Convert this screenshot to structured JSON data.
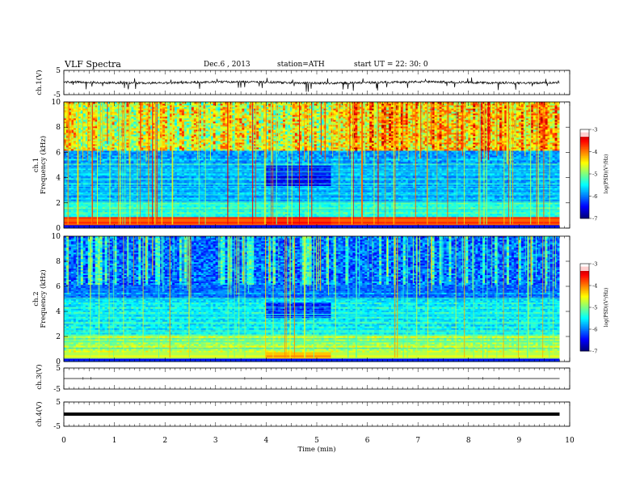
{
  "header": {
    "title": "VLF  Spectra",
    "date": "Dec.6  , 2013",
    "station": "station=ATH",
    "start": "start  UT  =   22: 30: 0"
  },
  "chart_data": [
    {
      "type": "line",
      "panel": "ch1-waveform",
      "ylabel": "ch.1(V)",
      "ylim": [
        -5,
        5
      ],
      "yticks": [
        "5",
        "-5"
      ],
      "xlim": [
        0,
        10
      ],
      "baseline": 0,
      "description_trace": "noisy waveform around 0 V with sporadic downward spikes"
    },
    {
      "type": "heatmap",
      "panel": "ch1-spectrogram",
      "ylabel": "ch.1\nFrequency  (kHz)",
      "ylim": [
        0,
        10
      ],
      "yticks": [
        "0",
        "2",
        "4",
        "6",
        "8",
        "10"
      ],
      "xlim": [
        0,
        10
      ],
      "data_end_min": 9.8,
      "colorbar": {
        "label": "log(PSD)(V²/Hz)",
        "range": [
          -7,
          -3
        ],
        "ticks": [
          "-3",
          "-4",
          "-5",
          "-6",
          "-7"
        ]
      }
    },
    {
      "type": "heatmap",
      "panel": "ch2-spectrogram",
      "ylabel": "ch.2\nFrequency  (kHz)",
      "ylim": [
        0,
        10
      ],
      "yticks": [
        "0",
        "2",
        "4",
        "6",
        "8",
        "10"
      ],
      "xlim": [
        0,
        10
      ],
      "data_end_min": 9.8,
      "colorbar": {
        "label": "log(PSD)(V²/Hz)",
        "range": [
          -7,
          -3
        ],
        "ticks": [
          "-3",
          "-4",
          "-5",
          "-6",
          "-7"
        ]
      }
    },
    {
      "type": "line",
      "panel": "ch3-waveform",
      "ylabel": "ch.3(V)",
      "ylim": [
        -5,
        5
      ],
      "yticks": [
        "5",
        "-5"
      ],
      "xlim": [
        0,
        10
      ],
      "baseline": 0
    },
    {
      "type": "line",
      "panel": "ch4-waveform",
      "ylabel": "ch.4(V)",
      "ylim": [
        -5,
        5
      ],
      "yticks": [
        "5",
        "-5"
      ],
      "xlim": [
        0,
        10
      ],
      "baseline": 0
    }
  ],
  "xaxis": {
    "label": "Time  (min)",
    "ticks": [
      "0",
      "1",
      "2",
      "3",
      "4",
      "5",
      "6",
      "7",
      "8",
      "9",
      "10"
    ]
  },
  "colors": {
    "axis": "#000000",
    "trace": "#000000"
  }
}
